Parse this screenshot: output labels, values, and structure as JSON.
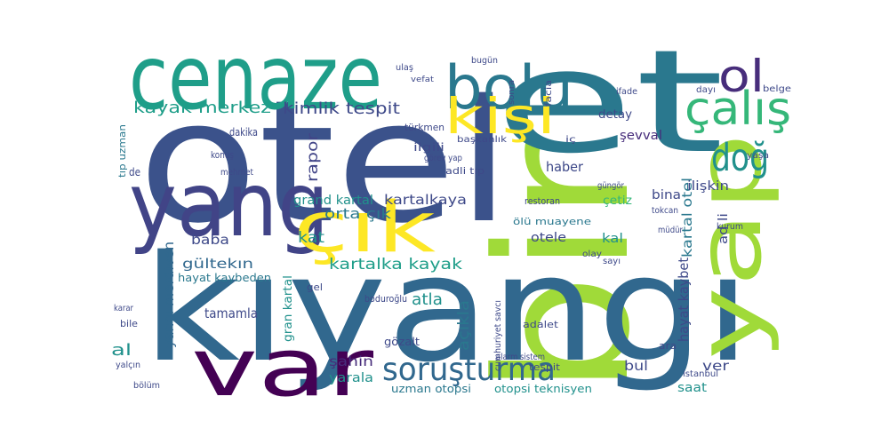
{
  "words": [
    {
      "text": "otel",
      "color": "#3b528b"
    },
    {
      "text": "bir",
      "color": "#a0da39"
    },
    {
      "text": "et",
      "color": "#2a788e"
    },
    {
      "text": "kıyangı",
      "color": "#31688e"
    },
    {
      "text": "yap",
      "color": "#a0da39"
    },
    {
      "text": "cenaze",
      "color": "#1f9e89"
    },
    {
      "text": "yang",
      "color": "#414487"
    },
    {
      "text": "çık",
      "color": "#fde725"
    },
    {
      "text": "var",
      "color": "#440154"
    },
    {
      "text": "bolu",
      "color": "#2a788e"
    },
    {
      "text": "kişi",
      "color": "#fde725"
    },
    {
      "text": "ol",
      "color": "#472d7b"
    },
    {
      "text": "çalış",
      "color": "#35b779"
    },
    {
      "text": "doğ",
      "color": "#21918c"
    },
    {
      "text": "soruşturma",
      "color": "#31688e"
    },
    {
      "text": "kayak merkez",
      "color": "#1f9e89"
    },
    {
      "text": "kimlik tespit",
      "color": "#3e4989"
    },
    {
      "text": "rapor",
      "color": "#414487"
    },
    {
      "text": "tıp uzman",
      "color": "#2a788e"
    },
    {
      "text": "orta çık",
      "color": "#2a788e"
    },
    {
      "text": "grand kartal",
      "color": "#21918c"
    },
    {
      "text": "kartalkaya",
      "color": "#3e4989"
    },
    {
      "text": "kat",
      "color": "#21918c"
    },
    {
      "text": "baba",
      "color": "#3e4989"
    },
    {
      "text": "gültekın",
      "color": "#31688e"
    },
    {
      "text": "kartalka kayak",
      "color": "#1f9e89"
    },
    {
      "text": "hayat kaybeden",
      "color": "#2a788e"
    },
    {
      "text": "yangı merdiven",
      "color": "#31688e"
    },
    {
      "text": "tamamla",
      "color": "#3e4989"
    },
    {
      "text": "atla",
      "color": "#21918c"
    },
    {
      "text": "açıkla",
      "color": "#2a788e"
    },
    {
      "text": "şahin",
      "color": "#472d7b"
    },
    {
      "text": "yarala",
      "color": "#21918c"
    },
    {
      "text": "gran kartal",
      "color": "#21918c"
    },
    {
      "text": "al",
      "color": "#21918c"
    },
    {
      "text": "uzman otopsi",
      "color": "#2a788e"
    },
    {
      "text": "otopsi teknisyen",
      "color": "#21918c"
    },
    {
      "text": "bul",
      "color": "#3e4989"
    },
    {
      "text": "saat",
      "color": "#21918c"
    },
    {
      "text": "ver",
      "color": "#3e4989"
    },
    {
      "text": "hayat kaybet",
      "color": "#3e4989"
    },
    {
      "text": "kartal otel",
      "color": "#2a788e"
    },
    {
      "text": "kal",
      "color": "#21918c"
    },
    {
      "text": "otele",
      "color": "#3e4989"
    },
    {
      "text": "bina",
      "color": "#3e4989"
    },
    {
      "text": "haber",
      "color": "#3e4989"
    },
    {
      "text": "çetiz",
      "color": "#35b779"
    },
    {
      "text": "detay",
      "color": "#3e4989"
    },
    {
      "text": "şevval",
      "color": "#472d7b"
    },
    {
      "text": "ilişkin",
      "color": "#3e4989"
    },
    {
      "text": "ad li",
      "color": "#3e4989"
    },
    {
      "text": "ölü muayene",
      "color": "#2a788e"
    },
    {
      "text": "restoran",
      "color": "#3e4989"
    },
    {
      "text": "adli tıp",
      "color": "#3e4989"
    },
    {
      "text": "başkanlık",
      "color": "#3e4989"
    },
    {
      "text": "ilgili",
      "color": "#3e4989"
    },
    {
      "text": "türkmen",
      "color": "#3e4989"
    },
    {
      "text": "görev yap",
      "color": "#3e4989"
    },
    {
      "text": "dakika",
      "color": "#3e4989"
    },
    {
      "text": "konuş",
      "color": "#3e4989"
    },
    {
      "text": "mehmet",
      "color": "#3e4989"
    },
    {
      "text": "de",
      "color": "#3e4989"
    },
    {
      "text": "bugün",
      "color": "#3e4989"
    },
    {
      "text": "ifade",
      "color": "#3e4989"
    },
    {
      "text": "belge",
      "color": "#3e4989"
    },
    {
      "text": "dayı",
      "color": "#3e4989"
    },
    {
      "text": "gel",
      "color": "#3e4989"
    },
    {
      "text": "boduroğlu",
      "color": "#3e4989"
    },
    {
      "text": "bile",
      "color": "#3e4989"
    },
    {
      "text": "karar",
      "color": "#3e4989"
    },
    {
      "text": "bölüm",
      "color": "#3e4989"
    },
    {
      "text": "yalçın",
      "color": "#3e4989"
    },
    {
      "text": "müdür",
      "color": "#3e4989"
    },
    {
      "text": "tokcan",
      "color": "#3e4989"
    },
    {
      "text": "olay",
      "color": "#3e4989"
    },
    {
      "text": "adalet",
      "color": "#3e4989"
    },
    {
      "text": "tespit",
      "color": "#3e4989"
    },
    {
      "text": "gözalt",
      "color": "#3e4989"
    },
    {
      "text": "ara",
      "color": "#3e4989"
    },
    {
      "text": "cumhuriyet savcı",
      "color": "#3e4989"
    },
    {
      "text": "istanbul",
      "color": "#3e4989"
    },
    {
      "text": "alarm sistem",
      "color": "#3e4989"
    },
    {
      "text": "sayı",
      "color": "#3e4989"
    },
    {
      "text": "yaşa",
      "color": "#3e4989"
    },
    {
      "text": "kurum",
      "color": "#3e4989"
    },
    {
      "text": "iç",
      "color": "#3e4989"
    },
    {
      "text": "facia",
      "color": "#3e4989"
    },
    {
      "text": "sonra",
      "color": "#3e4989"
    },
    {
      "text": "vefat",
      "color": "#3e4989"
    },
    {
      "text": "ulaş",
      "color": "#3e4989"
    },
    {
      "text": "güngör",
      "color": "#3e4989"
    }
  ]
}
